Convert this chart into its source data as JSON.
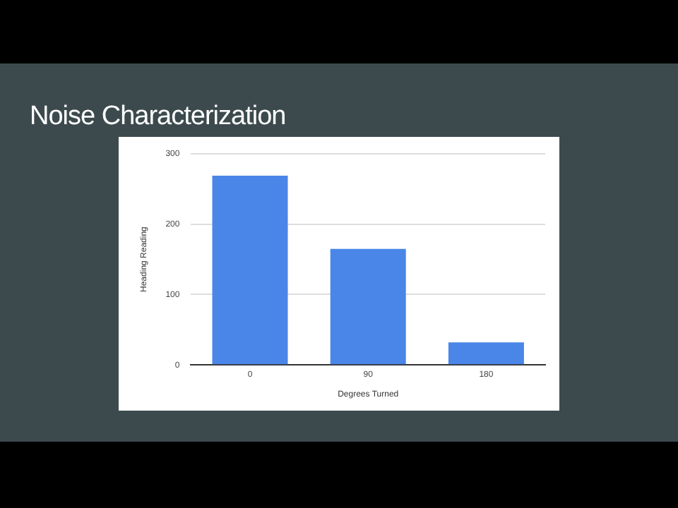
{
  "chart_data": {
    "type": "bar",
    "title": "Noise Characterization",
    "xlabel": "Degrees Turned",
    "ylabel": "Heading Reading",
    "categories": [
      "0",
      "90",
      "180"
    ],
    "values": [
      269,
      165,
      32
    ],
    "color": "#4a86e8",
    "ylim": [
      0,
      300
    ],
    "yticks": [
      0,
      100,
      200,
      300
    ],
    "grid": "y",
    "legend": false
  }
}
